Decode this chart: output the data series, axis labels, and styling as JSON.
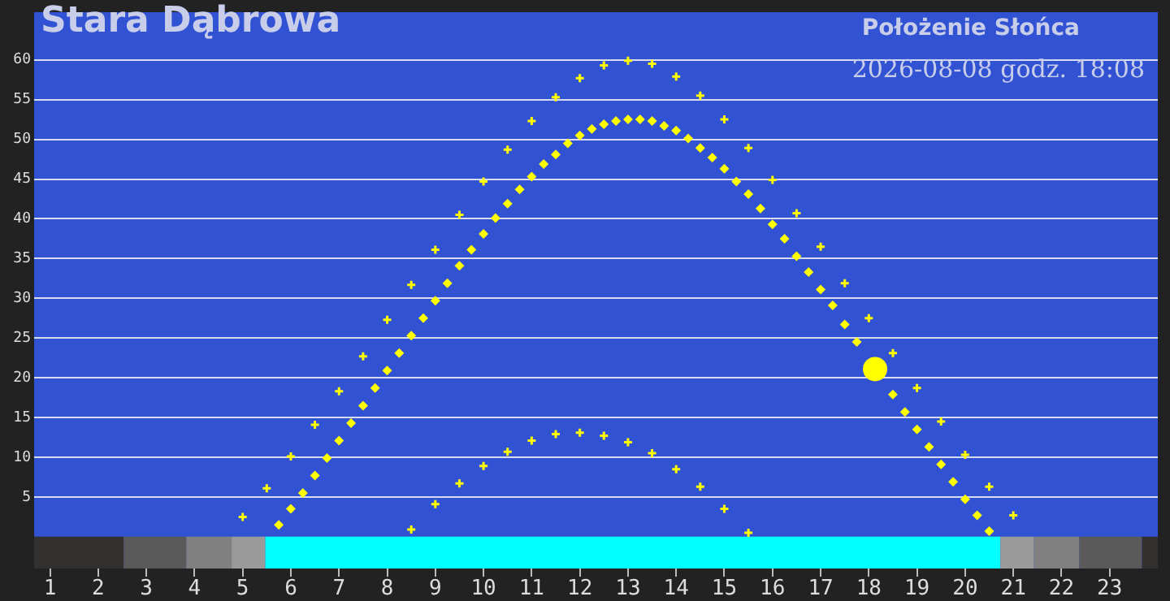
{
  "chart_data": {
    "type": "scatter",
    "title": "Stara Dąbrowa",
    "subtitle": "Położenie Słońca",
    "annotations": [
      "2026-08-08 godz. 18:08"
    ],
    "xlim": [
      0.67,
      24
    ],
    "xticks": [
      1,
      2,
      3,
      4,
      5,
      6,
      7,
      8,
      9,
      10,
      11,
      12,
      13,
      14,
      15,
      16,
      17,
      18,
      19,
      20,
      21,
      22,
      23
    ],
    "ylim": [
      -4,
      66
    ],
    "yticks": [
      5,
      10,
      15,
      20,
      25,
      30,
      35,
      40,
      45,
      50,
      55,
      60
    ],
    "grid": "y",
    "series": [
      {
        "color": "#ffff00",
        "marker": "cross",
        "x": [
          5,
          5.5,
          6,
          6.5,
          7,
          7.5,
          8,
          8.5,
          9,
          9.5,
          10,
          10.5,
          11,
          11.5,
          12,
          12.5,
          13,
          13.5,
          14,
          14.5,
          15,
          15.5,
          16,
          16.5,
          17,
          17.5,
          18,
          18.5,
          19,
          19.5,
          20,
          20.5,
          21
        ],
        "values": [
          2.5,
          6.1,
          10.1,
          14.1,
          18.3,
          22.7,
          27.3,
          31.7,
          36.1,
          40.5,
          44.7,
          48.7,
          52.3,
          55.3,
          57.7,
          59.3,
          59.9,
          59.5,
          57.9,
          55.5,
          52.5,
          48.9,
          44.9,
          40.7,
          36.5,
          31.9,
          27.5,
          23.1,
          18.7,
          14.5,
          10.3,
          6.3,
          2.7
        ]
      },
      {
        "color": "#ffff00",
        "marker": "cross",
        "x": [
          8.5,
          9,
          9.5,
          10,
          10.5,
          11,
          11.5,
          12,
          12.5,
          13,
          13.5,
          14,
          14.5,
          15,
          15.5
        ],
        "values": [
          0.9,
          4.1,
          6.7,
          8.9,
          10.7,
          12.1,
          12.9,
          13.1,
          12.7,
          11.9,
          10.5,
          8.5,
          6.3,
          3.5,
          0.5
        ]
      },
      {
        "color": "#ffff00",
        "marker": "diamond",
        "x": [
          5.75,
          6,
          6.25,
          6.5,
          6.75,
          7,
          7.25,
          7.5,
          7.75,
          8,
          8.25,
          8.5,
          8.75,
          9,
          9.25,
          9.5,
          9.75,
          10,
          10.25,
          10.5,
          10.75,
          11,
          11.25,
          11.5,
          11.75,
          12,
          12.25,
          12.5,
          12.75,
          13,
          13.25,
          13.5,
          13.75,
          14,
          14.25,
          14.5,
          14.75,
          15,
          15.25,
          15.5,
          15.75,
          16,
          16.25,
          16.5,
          16.75,
          17,
          17.25,
          17.5,
          17.75,
          18,
          18.25,
          18.5,
          18.75,
          19,
          19.25,
          19.5,
          19.75,
          20,
          20.25,
          20.5
        ],
        "values": [
          1.5,
          3.5,
          5.5,
          7.7,
          9.9,
          12.1,
          14.3,
          16.5,
          18.7,
          20.9,
          23.1,
          25.3,
          27.5,
          29.7,
          31.9,
          34.1,
          36.1,
          38.1,
          40.1,
          41.9,
          43.7,
          45.3,
          46.9,
          48.1,
          49.5,
          50.5,
          51.3,
          51.9,
          52.3,
          52.5,
          52.5,
          52.3,
          51.7,
          51.1,
          50.1,
          48.9,
          47.7,
          46.3,
          44.7,
          43.1,
          41.3,
          39.3,
          37.5,
          35.3,
          33.3,
          31.1,
          29.1,
          26.7,
          24.5,
          null,
          null,
          17.9,
          15.7,
          13.5,
          11.3,
          9.1,
          6.9,
          4.7,
          2.7,
          0.7
        ]
      },
      {
        "type": "bubble",
        "color": "#ffff00",
        "x": [
          18.13
        ],
        "values": [
          21.1
        ],
        "sizes": [
          1
        ]
      }
    ],
    "bands": [
      {
        "axis": "x",
        "from": 0.67,
        "to": 2.53,
        "color": "#333030"
      },
      {
        "axis": "x",
        "from": 2.53,
        "to": 3.83,
        "color": "#5a5a5a"
      },
      {
        "axis": "x",
        "from": 3.83,
        "to": 4.77,
        "color": "#808080"
      },
      {
        "axis": "x",
        "from": 4.77,
        "to": 5.47,
        "color": "#9a9a9a"
      },
      {
        "axis": "x",
        "from": 5.47,
        "to": 20.73,
        "color": "#00ffff"
      },
      {
        "axis": "x",
        "from": 20.73,
        "to": 21.43,
        "color": "#9a9a9a"
      },
      {
        "axis": "x",
        "from": 21.43,
        "to": 22.37,
        "color": "#808080"
      },
      {
        "axis": "x",
        "from": 22.37,
        "to": 23.67,
        "color": "#5a5a5a"
      },
      {
        "axis": "x",
        "from": 23.67,
        "to": 24,
        "color": "#333030"
      }
    ]
  }
}
